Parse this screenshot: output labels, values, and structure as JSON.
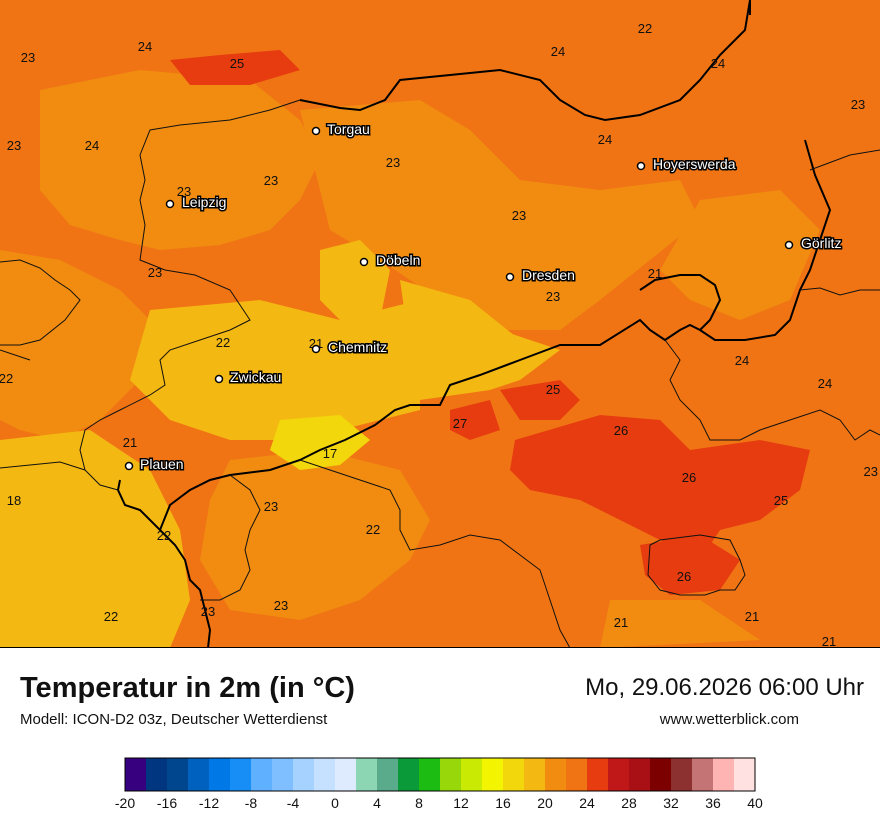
{
  "title": "Temperatur in 2m (in °C)",
  "model": "Modell: ICON-D2 03z, Deutscher Wetterdienst",
  "datetime": "Mo, 29.06.2026 06:00 Uhr",
  "website": "www.wetterblick.com",
  "colors": {
    "background_heat": "#f07414",
    "mid_orange": "#f18c10",
    "warm_yellow": "#f4b812",
    "hot_red": "#e63c10",
    "bright_yellow": "#f2d70c",
    "border": "#000000"
  },
  "cities": [
    {
      "name": "Torgau"
    },
    {
      "name": "Hoyerswerda"
    },
    {
      "name": "Leipzig"
    },
    {
      "name": "Döbeln"
    },
    {
      "name": "Dresden"
    },
    {
      "name": "Görlitz"
    },
    {
      "name": "Chemnitz"
    },
    {
      "name": "Zwickau"
    },
    {
      "name": "Plauen"
    }
  ],
  "temperature_labels": [
    "24",
    "25",
    "23",
    "24",
    "22",
    "24",
    "23",
    "23",
    "24",
    "24",
    "23",
    "23",
    "23",
    "23",
    "24",
    "23",
    "23",
    "21",
    "23",
    "22",
    "21",
    "24",
    "22",
    "24",
    "25",
    "27",
    "26",
    "21",
    "26",
    "17",
    "18",
    "25",
    "23",
    "22",
    "22",
    "26",
    "22",
    "23",
    "23",
    "21",
    "21",
    "21"
  ],
  "legend": {
    "ticks": [
      "-20",
      "-16",
      "-12",
      "-8",
      "-4",
      "0",
      "4",
      "8",
      "12",
      "16",
      "20",
      "24",
      "28",
      "32",
      "36",
      "40"
    ],
    "colors": [
      "#37007f",
      "#00357f",
      "#00468f",
      "#0061bf",
      "#0078e6",
      "#168ef5",
      "#5fb0ff",
      "#80bfff",
      "#a6d2ff",
      "#c5e1ff",
      "#deebff",
      "#8cd6b4",
      "#5aaa8c",
      "#0a9a3a",
      "#1cbc12",
      "#98d80a",
      "#c9ea02",
      "#f3f500",
      "#f2d70c",
      "#f4b812",
      "#f18c10",
      "#f07414",
      "#e63c10",
      "#c01818",
      "#a81016",
      "#7c0000",
      "#8c3030",
      "#c47474",
      "#ffb4b4",
      "#ffe1e1"
    ]
  }
}
